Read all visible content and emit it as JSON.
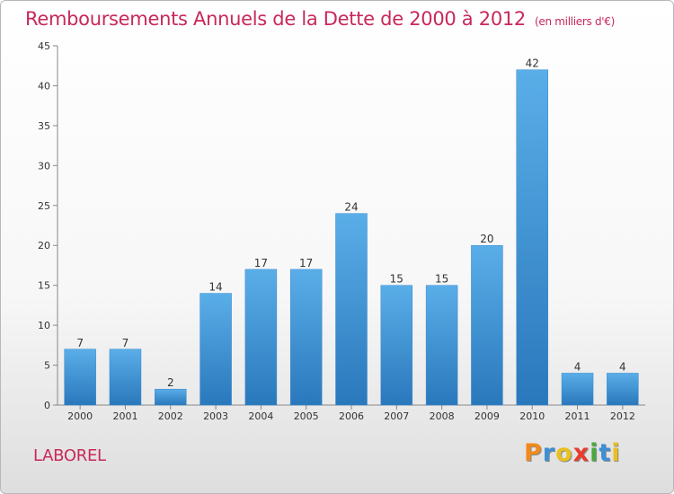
{
  "page": {
    "title": "Remboursements Annuels de la Dette de 2000 à 2012",
    "unit": "(en milliers d'€)",
    "commune": "LABOREL",
    "logo": {
      "letters": [
        "P",
        "r",
        "o",
        "x",
        "i",
        "t",
        "i"
      ],
      "colors": [
        "#f08a1c",
        "#3d8fd6",
        "#e8c020",
        "#e83c2c",
        "#4aa83c",
        "#3d8fd6",
        "#e8c020"
      ]
    }
  },
  "chart_data": {
    "type": "bar",
    "title": "Remboursements Annuels de la Dette de 2000 à 2012",
    "subtitle": "(en milliers d'€)",
    "categories": [
      "2000",
      "2001",
      "2002",
      "2003",
      "2004",
      "2005",
      "2006",
      "2007",
      "2008",
      "2009",
      "2010",
      "2011",
      "2012"
    ],
    "values": [
      7,
      7,
      2,
      14,
      17,
      17,
      24,
      15,
      15,
      20,
      42,
      4,
      4
    ],
    "ylim": [
      0,
      45
    ],
    "yticks": [
      0,
      5,
      10,
      15,
      20,
      25,
      30,
      35,
      40,
      45
    ],
    "bar_color": "#4a9ede",
    "grid": false,
    "legend": "none"
  }
}
